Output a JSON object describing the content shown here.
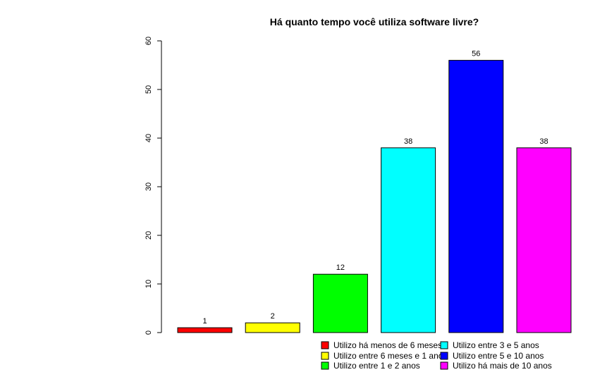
{
  "chart_data": {
    "type": "bar",
    "title": "Há quanto tempo você utiliza software livre?",
    "xlabel": "",
    "ylabel": "",
    "ylim": [
      0,
      60
    ],
    "yticks": [
      0,
      10,
      20,
      30,
      40,
      50,
      60
    ],
    "grid": false,
    "legend_position": "bottom-right",
    "categories": [
      "Utilizo há menos de 6 meses",
      "Utilizo entre 6 meses e 1 ano",
      "Utilizo entre 1 e 2 anos",
      "Utilizo entre 3 e 5 anos",
      "Utilizo entre 5 e 10 anos",
      "Utilizo há mais de 10 anos"
    ],
    "values": [
      1,
      2,
      12,
      38,
      56,
      38
    ],
    "colors": [
      "#ff0000",
      "#ffff00",
      "#00ff00",
      "#00ffff",
      "#0000ff",
      "#ff00ff"
    ]
  }
}
